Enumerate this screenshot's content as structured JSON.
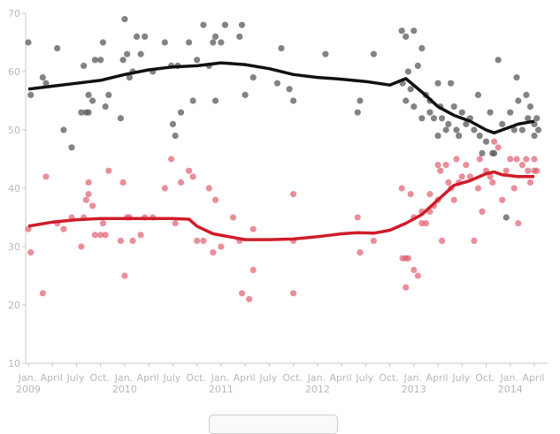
{
  "chart_data": {
    "type": "scatter",
    "title": "",
    "xlabel": "",
    "ylabel": "",
    "ylim": [
      10,
      70
    ],
    "yticks": [
      "10",
      "20",
      "30",
      "40",
      "50",
      "60",
      "70"
    ],
    "xlim_months_since_jan_2009": [
      0,
      63
    ],
    "xticks": [
      {
        "month": "Jan.",
        "year": "2009"
      },
      {
        "month": "April",
        "year": ""
      },
      {
        "month": "July",
        "year": ""
      },
      {
        "month": "Oct.",
        "year": ""
      },
      {
        "month": "Jan.",
        "year": "2010"
      },
      {
        "month": "April",
        "year": ""
      },
      {
        "month": "July",
        "year": ""
      },
      {
        "month": "Oct.",
        "year": ""
      },
      {
        "month": "Jan.",
        "year": "2011"
      },
      {
        "month": "April",
        "year": ""
      },
      {
        "month": "July",
        "year": ""
      },
      {
        "month": "Oct.",
        "year": ""
      },
      {
        "month": "Jan.",
        "year": "2012"
      },
      {
        "month": "April",
        "year": ""
      },
      {
        "month": "July",
        "year": ""
      },
      {
        "month": "Oct.",
        "year": ""
      },
      {
        "month": "Jan.",
        "year": "2013"
      },
      {
        "month": "April",
        "year": ""
      },
      {
        "month": "July",
        "year": ""
      },
      {
        "month": "Oct.",
        "year": ""
      },
      {
        "month": "Jan.",
        "year": "2014"
      },
      {
        "month": "April",
        "year": ""
      }
    ],
    "grid": false,
    "series": [
      {
        "name": "gray",
        "color": "#5a5a5a",
        "line_color": "#111111",
        "points": [
          [
            0,
            65
          ],
          [
            0.3,
            56
          ],
          [
            1.8,
            59
          ],
          [
            2.2,
            58
          ],
          [
            3.6,
            64
          ],
          [
            4.4,
            50
          ],
          [
            5.4,
            47
          ],
          [
            6.6,
            53
          ],
          [
            6.9,
            61
          ],
          [
            7.2,
            53
          ],
          [
            7.5,
            53
          ],
          [
            7.5,
            56
          ],
          [
            8,
            55
          ],
          [
            8.3,
            62
          ],
          [
            9,
            62
          ],
          [
            9.3,
            65
          ],
          [
            9.6,
            54
          ],
          [
            10,
            56
          ],
          [
            11.5,
            52
          ],
          [
            11.8,
            62
          ],
          [
            12,
            69
          ],
          [
            12.3,
            63
          ],
          [
            12.6,
            59
          ],
          [
            13,
            60
          ],
          [
            13.5,
            66
          ],
          [
            14,
            63
          ],
          [
            14.5,
            66
          ],
          [
            15.5,
            60
          ],
          [
            17,
            65
          ],
          [
            17.8,
            61
          ],
          [
            18,
            51
          ],
          [
            18.3,
            49
          ],
          [
            18.6,
            61
          ],
          [
            19,
            53
          ],
          [
            20,
            65
          ],
          [
            20.5,
            55
          ],
          [
            21,
            62
          ],
          [
            21.8,
            68
          ],
          [
            22.5,
            61
          ],
          [
            23,
            65
          ],
          [
            23.3,
            66
          ],
          [
            23.3,
            55
          ],
          [
            24,
            65
          ],
          [
            24.5,
            68
          ],
          [
            26.3,
            66
          ],
          [
            26.6,
            68
          ],
          [
            27,
            56
          ],
          [
            28,
            59
          ],
          [
            31,
            58
          ],
          [
            31.5,
            64
          ],
          [
            32.5,
            57
          ],
          [
            33,
            55
          ],
          [
            37,
            63
          ],
          [
            41,
            53
          ],
          [
            41.3,
            55
          ],
          [
            43,
            63
          ],
          [
            46.5,
            67
          ],
          [
            46.6,
            58
          ],
          [
            47,
            55
          ],
          [
            47,
            66
          ],
          [
            47.3,
            60
          ],
          [
            47.6,
            57
          ],
          [
            48,
            54
          ],
          [
            48,
            67
          ],
          [
            48.5,
            61
          ],
          [
            49,
            64
          ],
          [
            49,
            52
          ],
          [
            49.5,
            56
          ],
          [
            50,
            55
          ],
          [
            50,
            53
          ],
          [
            50.5,
            52
          ],
          [
            51,
            58
          ],
          [
            51,
            49
          ],
          [
            51.3,
            54
          ],
          [
            51.5,
            52
          ],
          [
            52,
            50
          ],
          [
            52.3,
            51
          ],
          [
            52.6,
            58
          ],
          [
            53,
            54
          ],
          [
            53.3,
            50
          ],
          [
            53.6,
            49
          ],
          [
            54,
            53
          ],
          [
            54.5,
            51
          ],
          [
            55,
            52
          ],
          [
            55.5,
            50
          ],
          [
            56,
            56
          ],
          [
            56.2,
            49
          ],
          [
            56.5,
            46
          ],
          [
            57,
            48
          ],
          [
            57.5,
            53
          ],
          [
            57.8,
            46
          ],
          [
            58,
            46
          ],
          [
            58.5,
            62
          ],
          [
            59,
            51
          ],
          [
            59.5,
            35
          ],
          [
            60,
            53
          ],
          [
            60.5,
            50
          ],
          [
            60.8,
            59
          ],
          [
            61,
            55
          ],
          [
            61.5,
            50
          ],
          [
            62,
            56
          ],
          [
            62.2,
            52
          ],
          [
            62.5,
            54
          ],
          [
            63,
            51
          ],
          [
            63,
            49
          ],
          [
            63.3,
            52
          ],
          [
            63.5,
            50
          ]
        ],
        "trend": [
          [
            0,
            57
          ],
          [
            3,
            57.5
          ],
          [
            6,
            58
          ],
          [
            9,
            58.5
          ],
          [
            12,
            59.5
          ],
          [
            15,
            60.3
          ],
          [
            18,
            60.8
          ],
          [
            21,
            61
          ],
          [
            24,
            61.5
          ],
          [
            27,
            61.2
          ],
          [
            30,
            60.5
          ],
          [
            33,
            59.5
          ],
          [
            36,
            59
          ],
          [
            39,
            58.7
          ],
          [
            42,
            58.3
          ],
          [
            45,
            57.7
          ],
          [
            47,
            58.8
          ],
          [
            49,
            56.5
          ],
          [
            51,
            54
          ],
          [
            53,
            52.5
          ],
          [
            55,
            51.5
          ],
          [
            57,
            50
          ],
          [
            58,
            49.5
          ],
          [
            59,
            50
          ],
          [
            61,
            51
          ],
          [
            63,
            51.5
          ]
        ]
      },
      {
        "name": "red",
        "color": "#e0606f",
        "line_color": "#d01c2a",
        "points": [
          [
            0,
            33
          ],
          [
            0.3,
            29
          ],
          [
            1.8,
            22
          ],
          [
            2.2,
            42
          ],
          [
            3.6,
            34
          ],
          [
            4.4,
            33
          ],
          [
            5.4,
            35
          ],
          [
            6.6,
            30
          ],
          [
            6.9,
            35
          ],
          [
            7.2,
            38
          ],
          [
            7.5,
            39
          ],
          [
            7.5,
            41
          ],
          [
            8,
            37
          ],
          [
            8.3,
            32
          ],
          [
            9,
            32
          ],
          [
            9.3,
            34
          ],
          [
            9.6,
            32
          ],
          [
            10,
            43
          ],
          [
            11.5,
            31
          ],
          [
            11.8,
            41
          ],
          [
            12,
            25
          ],
          [
            12.3,
            35
          ],
          [
            12.6,
            35
          ],
          [
            13,
            31
          ],
          [
            14,
            32
          ],
          [
            14.5,
            35
          ],
          [
            15.5,
            35
          ],
          [
            17,
            40
          ],
          [
            17.8,
            45
          ],
          [
            18.3,
            34
          ],
          [
            19,
            41
          ],
          [
            20,
            43
          ],
          [
            20.5,
            42
          ],
          [
            21,
            31
          ],
          [
            21.8,
            31
          ],
          [
            22.5,
            40
          ],
          [
            23,
            29
          ],
          [
            23.3,
            38
          ],
          [
            24,
            30
          ],
          [
            25.5,
            35
          ],
          [
            26.3,
            31
          ],
          [
            26.6,
            22
          ],
          [
            27.5,
            21
          ],
          [
            28,
            26
          ],
          [
            28,
            33
          ],
          [
            33,
            31
          ],
          [
            33,
            22
          ],
          [
            33,
            39
          ],
          [
            41,
            35
          ],
          [
            41.3,
            29
          ],
          [
            43,
            31
          ],
          [
            46.5,
            40
          ],
          [
            46.6,
            28
          ],
          [
            47,
            28
          ],
          [
            47,
            23
          ],
          [
            47.3,
            28
          ],
          [
            47.6,
            39
          ],
          [
            48,
            35
          ],
          [
            48,
            26
          ],
          [
            48.5,
            25
          ],
          [
            49,
            36
          ],
          [
            49,
            34
          ],
          [
            49.5,
            34
          ],
          [
            50,
            36
          ],
          [
            50,
            39
          ],
          [
            50.5,
            37
          ],
          [
            51,
            44
          ],
          [
            51,
            38
          ],
          [
            51.3,
            43
          ],
          [
            51.5,
            31
          ],
          [
            52,
            44
          ],
          [
            52.3,
            41
          ],
          [
            52.6,
            40
          ],
          [
            53,
            38
          ],
          [
            53.3,
            45
          ],
          [
            53.6,
            41
          ],
          [
            54,
            42
          ],
          [
            54.5,
            44
          ],
          [
            55,
            42
          ],
          [
            55.5,
            31
          ],
          [
            56,
            40
          ],
          [
            56.2,
            45
          ],
          [
            56.5,
            36
          ],
          [
            57,
            43
          ],
          [
            57.5,
            42
          ],
          [
            57.8,
            41
          ],
          [
            58,
            48
          ],
          [
            58.5,
            47
          ],
          [
            59,
            38
          ],
          [
            59.5,
            43
          ],
          [
            60,
            45
          ],
          [
            60.5,
            40
          ],
          [
            60.8,
            45
          ],
          [
            61,
            34
          ],
          [
            61.5,
            44
          ],
          [
            62,
            45
          ],
          [
            62.2,
            43
          ],
          [
            62.5,
            41
          ],
          [
            63,
            45
          ],
          [
            63,
            43
          ],
          [
            63.3,
            43
          ]
        ],
        "trend": [
          [
            0,
            33.5
          ],
          [
            3,
            34.2
          ],
          [
            6,
            34.6
          ],
          [
            9,
            34.8
          ],
          [
            12,
            34.8
          ],
          [
            15,
            34.8
          ],
          [
            18,
            34.8
          ],
          [
            20,
            34.7
          ],
          [
            21,
            33.5
          ],
          [
            23,
            32.2
          ],
          [
            25,
            31.7
          ],
          [
            27,
            31.2
          ],
          [
            30,
            31.2
          ],
          [
            33,
            31.3
          ],
          [
            36,
            31.7
          ],
          [
            39,
            32.2
          ],
          [
            41,
            32.4
          ],
          [
            43,
            32.3
          ],
          [
            45,
            32.8
          ],
          [
            47,
            34
          ],
          [
            49,
            35.5
          ],
          [
            51,
            38
          ],
          [
            53,
            40.5
          ],
          [
            55,
            41.3
          ],
          [
            57,
            42.5
          ],
          [
            58,
            42.8
          ],
          [
            59,
            42.3
          ],
          [
            61,
            42
          ],
          [
            63,
            42
          ]
        ]
      }
    ]
  }
}
